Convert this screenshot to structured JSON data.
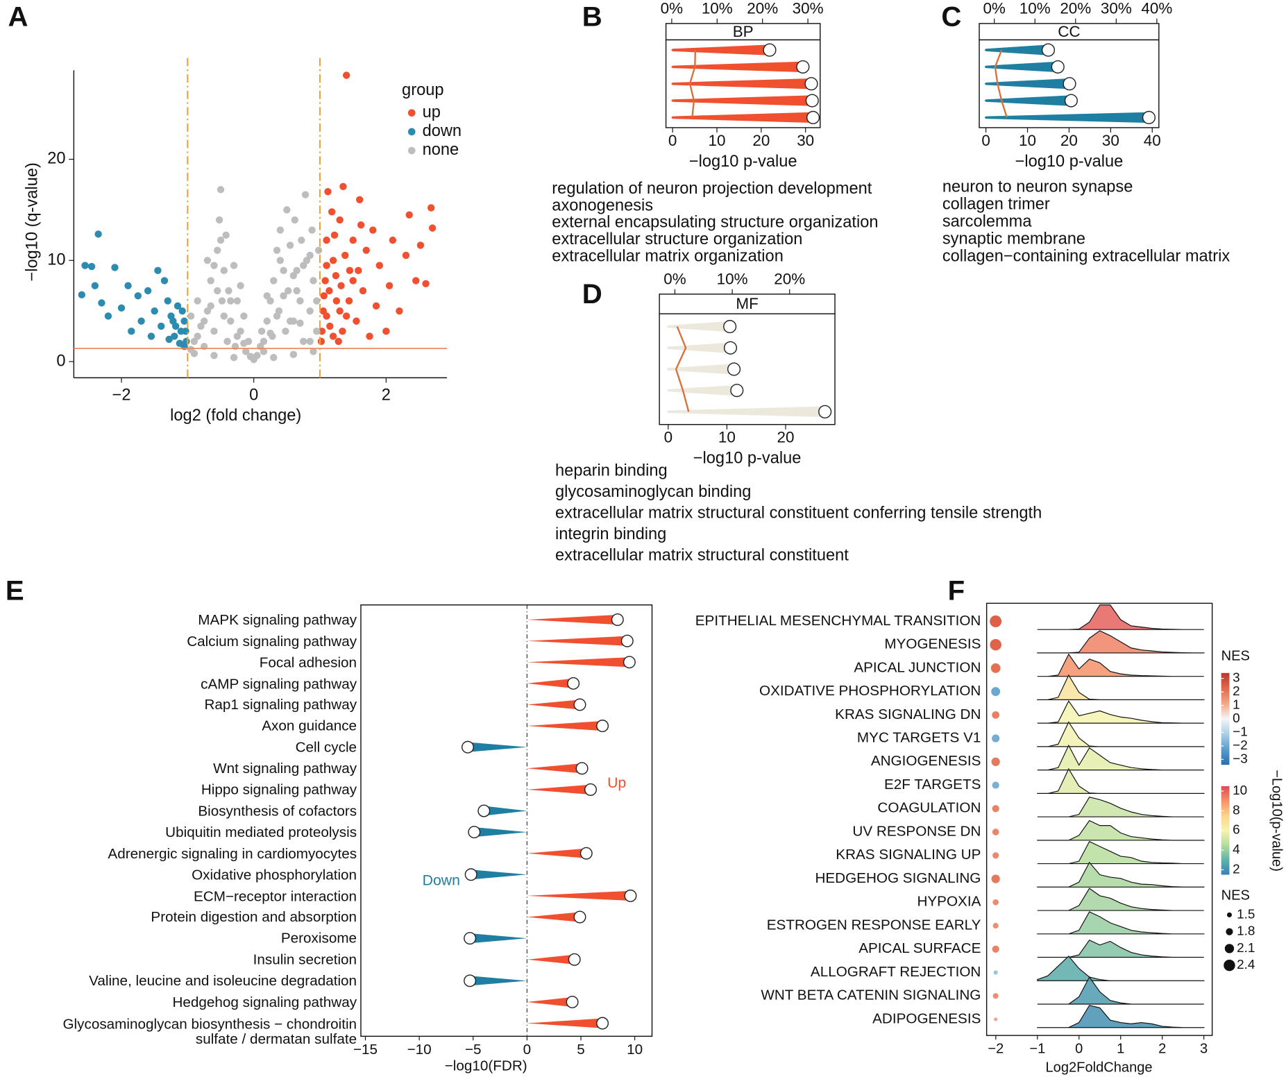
{
  "chart_data": [
    {
      "type": "volcano",
      "label": "A",
      "xlabel": "log2 (fold change)",
      "ylabel": "−log10 (q-value)",
      "legend_title": "group",
      "xlim": [
        -2.72,
        2.92
      ],
      "ylim": [
        -1.6,
        28.8
      ],
      "xticks": [
        {
          "value": -2,
          "label": "−2"
        },
        0,
        2
      ],
      "yticks": [
        0,
        10,
        20
      ],
      "vlines": [
        -1,
        1
      ],
      "hline": 1.3,
      "threshold_color": "#e8a33d",
      "hline_color": "#f08a5d",
      "series": [
        {
          "name": "up",
          "color": "#f0502f",
          "x": [
            1.02,
            1.05,
            1.08,
            1.1,
            1.12,
            1.15,
            1.2,
            1.25,
            1.3,
            1.35,
            1.4,
            1.45,
            1.5,
            1.55,
            1.6,
            1.65,
            1.7,
            1.75,
            1.8,
            1.85,
            1.9,
            2.0,
            2.05,
            2.1,
            2.2,
            2.3,
            2.35,
            2.45,
            2.52,
            2.6,
            2.68,
            2.7,
            1.18,
            1.28,
            1.4,
            1.62,
            1.03,
            1.06,
            1.1,
            1.14,
            1.2,
            1.24,
            1.3,
            1.34,
            1.38,
            1.44,
            1.5,
            1.58,
            1.1,
            1.22,
            1.32
          ],
          "values": [
            2,
            5,
            8,
            12,
            16.8,
            3.5,
            10,
            6,
            14,
            17.3,
            28.3,
            9,
            12,
            4,
            16,
            7,
            11,
            2.5,
            13,
            5.5,
            9.5,
            3,
            7.5,
            12,
            5,
            10.5,
            14.5,
            8,
            11.5,
            7.7,
            15.2,
            13.2,
            14.8,
            2,
            4.5,
            13.5,
            3,
            6.5,
            4.5,
            7,
            2.5,
            8.5,
            5,
            3,
            10.5,
            6,
            8,
            9,
            9.5,
            12.5,
            7.5
          ]
        },
        {
          "name": "down",
          "color": "#2b8cb0",
          "x": [
            -1.02,
            -1.05,
            -1.1,
            -1.15,
            -1.2,
            -1.25,
            -1.3,
            -1.35,
            -1.4,
            -1.45,
            -1.5,
            -1.55,
            -1.6,
            -1.7,
            -1.75,
            -1.85,
            -1.9,
            -2.0,
            -2.1,
            -2.2,
            -2.3,
            -2.35,
            -2.45,
            -2.55,
            -2.6,
            -2.4,
            -1.03,
            -1.08,
            -1.12,
            -1.18,
            -1.22,
            -1.28,
            -1.05
          ],
          "values": [
            2,
            4,
            3,
            5.5,
            2.5,
            4.5,
            6,
            8,
            3.5,
            9,
            5,
            2.5,
            7,
            4,
            6.5,
            3,
            7.5,
            5.3,
            9.3,
            4.5,
            5.8,
            12.6,
            9.4,
            9.5,
            6.6,
            7.5,
            3,
            5,
            1.8,
            3.5,
            4,
            2.2,
            1.5
          ]
        },
        {
          "name": "none",
          "color": "#bdbdbd",
          "x": [
            -0.95,
            -0.9,
            -0.85,
            -0.8,
            -0.75,
            -0.7,
            -0.65,
            -0.6,
            -0.55,
            -0.52,
            -0.5,
            -0.48,
            -0.45,
            -0.42,
            -0.4,
            -0.38,
            -0.35,
            -0.3,
            -0.28,
            -0.25,
            -0.2,
            -0.15,
            -0.12,
            -0.08,
            -0.05,
            0,
            0.05,
            0.1,
            0.12,
            0.15,
            0.2,
            0.25,
            0.28,
            0.3,
            0.35,
            0.38,
            0.4,
            0.45,
            0.48,
            0.5,
            0.52,
            0.55,
            0.6,
            0.62,
            0.65,
            0.7,
            0.72,
            0.75,
            0.78,
            0.8,
            0.85,
            0.88,
            0.9,
            0.95,
            0.98,
            -0.9,
            -0.6,
            -0.3,
            0.3,
            0.6,
            0.9,
            -0.7,
            -0.2,
            0.2,
            -0.85,
            -0.75,
            -0.65,
            -0.55,
            -0.45,
            -0.35,
            -0.25,
            -0.15,
            0.15,
            0.25,
            0.35,
            0.45,
            0.55,
            0.65,
            0.75,
            0.85,
            0.95,
            -0.6,
            -0.5,
            0.4,
            0.6,
            0.7,
            0.85,
            -0.95
          ],
          "values": [
            4.5,
            2,
            6,
            3.5,
            1.5,
            5,
            8,
            3,
            11,
            14,
            17,
            6,
            9,
            12.5,
            2,
            7,
            4,
            9.5,
            1.5,
            6,
            3,
            4.5,
            1,
            2,
            0.5,
            0.2,
            0.6,
            1.5,
            3,
            2,
            4,
            6,
            2.5,
            8,
            11,
            5,
            13,
            9,
            3,
            15,
            7,
            11.5,
            4,
            14,
            9,
            6,
            12,
            2,
            16.5,
            10,
            5,
            13,
            8,
            3,
            11,
            0.8,
            0.6,
            0.4,
            0.4,
            0.7,
            1,
            10,
            7.5,
            6.5,
            2.5,
            4,
            5.5,
            7,
            4.5,
            6,
            2.5,
            1.8,
            1,
            2.8,
            4.5,
            6.5,
            4,
            7,
            9.5,
            10.5,
            6,
            9.5,
            12,
            10,
            8.5,
            3.8,
            2,
            1.2
          ]
        }
      ]
    },
    {
      "type": "go_bar",
      "label": "B",
      "facet": "BP",
      "terms": [
        "regulation of neuron projection development",
        "axonogenesis",
        "external encapsulating structure organization",
        "extracellular structure organization",
        "extracellular matrix organization"
      ],
      "values": [
        21.9,
        29.4,
        31.3,
        31.5,
        31.7
      ],
      "percent": [
        5.2,
        5.1,
        4.0,
        4.9,
        4.5
      ],
      "xlim": [
        -1.5,
        33.3
      ],
      "xticks": [
        0,
        10,
        20,
        30
      ],
      "top_xlim": [
        -1.27,
        32.7
      ],
      "top_xticks": [
        {
          "value": 0,
          "label": "0%"
        },
        {
          "value": 10,
          "label": "10%"
        },
        {
          "value": 20,
          "label": "20%"
        },
        {
          "value": 30,
          "label": "30%"
        }
      ],
      "xlabel": "−log10 p-value",
      "color": "#f0502f",
      "line_color": "#d9703c"
    },
    {
      "type": "go_bar",
      "label": "C",
      "facet": "CC",
      "terms": [
        "neuron to neuron synapse",
        "collagen trimer",
        "sarcolemma",
        "synaptic membrane",
        "collagen−containing extracellular matrix"
      ],
      "values": [
        15.0,
        17.3,
        20.1,
        20.5,
        39.2
      ],
      "percent": [
        1.8,
        0.2,
        0.8,
        1.8,
        3.1
      ],
      "xlim": [
        -1.6,
        41.6
      ],
      "xticks": [
        0,
        10,
        20,
        30,
        40
      ],
      "top_xlim": [
        -3.7,
        40.5
      ],
      "top_xticks": [
        {
          "value": 0,
          "label": "0%"
        },
        {
          "value": 10,
          "label": "10%"
        },
        {
          "value": 20,
          "label": "20%"
        },
        {
          "value": 30,
          "label": "30%"
        },
        {
          "value": 40,
          "label": "40%"
        }
      ],
      "xlabel": "−log10 p-value",
      "color": "#1f7fa3",
      "line_color": "#d9703c"
    },
    {
      "type": "go_bar",
      "label": "D",
      "facet": "MF",
      "terms": [
        "heparin binding",
        "glycosaminoglycan binding",
        "extracellular matrix structural constituent conferring tensile strength",
        "integrin binding",
        "extracellular matrix structural constituent"
      ],
      "values": [
        10.5,
        10.6,
        11.2,
        11.7,
        26.7
      ],
      "percent": [
        0.4,
        1.9,
        0.2,
        1.4,
        2.4
      ],
      "xlim": [
        -1.5,
        28.4
      ],
      "xticks": [
        0,
        10,
        20
      ],
      "top_xlim": [
        -2.7,
        27.9
      ],
      "top_xticks": [
        {
          "value": 0,
          "label": "0%"
        },
        {
          "value": 10,
          "label": "10%"
        },
        {
          "value": 20,
          "label": "20%"
        }
      ],
      "xlabel": "−log10 p-value",
      "color": "#ece8dc",
      "line_color": "#d9703c"
    },
    {
      "type": "cone",
      "label": "E",
      "categories": [
        "MAPK signaling pathway",
        "Calcium signaling pathway",
        "Focal adhesion",
        "cAMP signaling pathway",
        "Rap1 signaling pathway",
        "Axon guidance",
        "Cell cycle",
        "Wnt signaling pathway",
        "Hippo signaling pathway",
        "Biosynthesis of cofactors",
        "Ubiquitin mediated proteolysis",
        "Adrenergic signaling in cardiomyocytes",
        "Oxidative phosphorylation",
        "ECM−receptor interaction",
        "Protein digestion and absorption",
        "Peroxisome",
        "Insulin secretion",
        "Valine, leucine and isoleucine degradation",
        "Hedgehog signaling pathway",
        "Glycosaminoglycan biosynthesis − chondroitin\nsulfate / dermatan sulfate"
      ],
      "values": [
        8.4,
        9.3,
        9.5,
        4.3,
        4.9,
        7.0,
        -5.5,
        5.1,
        5.9,
        -4.0,
        -4.9,
        5.5,
        -5.2,
        9.6,
        4.9,
        -5.3,
        4.4,
        -5.3,
        4.2,
        7.0
      ],
      "xlim": [
        -15.42,
        11.6
      ],
      "xticks": [
        {
          "value": -15,
          "label": "−15"
        },
        {
          "value": -10,
          "label": "−10"
        },
        {
          "value": -5,
          "label": "−5"
        },
        0,
        5,
        10
      ],
      "xlabel": "−log10(FDR)",
      "up_label": "Up",
      "down_label": "Down",
      "up_color": "#f0502f",
      "down_color": "#1f7fa3"
    },
    {
      "type": "ridgeline",
      "label": "F",
      "categories": [
        "EPITHELIAL MESENCHYMAL TRANSITION",
        "MYOGENESIS",
        "APICAL JUNCTION",
        "OXIDATIVE PHOSPHORYLATION",
        "KRAS SIGNALING DN",
        "MYC TARGETS V1",
        "ANGIOGENESIS",
        "E2F TARGETS",
        "COAGULATION",
        "UV RESPONSE DN",
        "KRAS SIGNALING UP",
        "HEDGEHOG SIGNALING",
        "HYPOXIA",
        "ESTROGEN RESPONSE EARLY",
        "APICAL SURFACE",
        "ALLOGRAFT REJECTION",
        "WNT BETA CATENIN SIGNALING",
        "ADIPOGENESIS"
      ],
      "nes": [
        2.45,
        2.4,
        2.15,
        -2.05,
        1.85,
        -1.9,
        2.0,
        -1.8,
        1.8,
        1.75,
        1.7,
        2.0,
        1.65,
        1.6,
        1.8,
        -1.4,
        1.6,
        1.3
      ],
      "log10p": [
        10,
        9.3,
        9,
        6.8,
        6,
        5.9,
        5.6,
        5.5,
        5,
        4.8,
        4.6,
        4.3,
        4.2,
        4,
        3.6,
        2.8,
        2.3,
        2.0
      ],
      "density_x": [
        -1,
        -0.75,
        -0.5,
        -0.25,
        0,
        0.25,
        0.5,
        0.75,
        1,
        1.25,
        1.5,
        1.75,
        2,
        2.25,
        2.5,
        2.75,
        3
      ],
      "density": [
        [
          0,
          0,
          0,
          0,
          0.02,
          0.3,
          1.0,
          1.0,
          0.4,
          0.15,
          0.1,
          0.05,
          0.02,
          0.01,
          0,
          0,
          0
        ],
        [
          0,
          0,
          0,
          0,
          0.03,
          0.6,
          0.9,
          0.7,
          0.45,
          0.2,
          0.12,
          0.08,
          0.04,
          0.02,
          0.01,
          0,
          0
        ],
        [
          0,
          0,
          0.05,
          0.9,
          0.3,
          0.7,
          0.55,
          0.2,
          0.1,
          0.05,
          0.03,
          0.02,
          0.01,
          0,
          0,
          0,
          0
        ],
        [
          0,
          0,
          0.1,
          1.0,
          0.3,
          0.02,
          0,
          0,
          0,
          0,
          0,
          0,
          0,
          0,
          0,
          0,
          0
        ],
        [
          0,
          0,
          0.05,
          0.9,
          0.3,
          0.4,
          0.5,
          0.35,
          0.25,
          0.2,
          0.12,
          0.06,
          0.02,
          0.01,
          0,
          0,
          0
        ],
        [
          0,
          0,
          0.1,
          1.0,
          0.35,
          0.02,
          0,
          0,
          0,
          0,
          0,
          0,
          0,
          0,
          0,
          0,
          0
        ],
        [
          0,
          0,
          0.1,
          1.0,
          0.2,
          0.9,
          0.6,
          0.3,
          0.2,
          0.1,
          0.05,
          0.02,
          0,
          0,
          0,
          0,
          0
        ],
        [
          0,
          0,
          0.1,
          1.0,
          0.3,
          0.02,
          0,
          0,
          0,
          0,
          0,
          0,
          0,
          0,
          0,
          0,
          0
        ],
        [
          0,
          0,
          0,
          0,
          0.1,
          0.8,
          0.7,
          0.55,
          0.35,
          0.2,
          0.1,
          0.05,
          0.02,
          0,
          0,
          0,
          0
        ],
        [
          0,
          0,
          0,
          0,
          0.2,
          0.8,
          0.6,
          0.6,
          0.3,
          0.15,
          0.1,
          0.05,
          0.02,
          0,
          0,
          0,
          0
        ],
        [
          0,
          0,
          0,
          0,
          0.1,
          0.9,
          0.7,
          0.5,
          0.3,
          0.25,
          0.1,
          0.05,
          0.03,
          0.02,
          0,
          0,
          0
        ],
        [
          0,
          0,
          0,
          0,
          0.2,
          1.0,
          0.5,
          0.4,
          0.35,
          0.2,
          0.12,
          0.1,
          0.05,
          0.02,
          0,
          0,
          0
        ],
        [
          0,
          0,
          0,
          0,
          0.2,
          0.9,
          0.6,
          0.5,
          0.3,
          0.15,
          0.08,
          0.04,
          0.02,
          0,
          0,
          0,
          0
        ],
        [
          0,
          0,
          0,
          0,
          0.15,
          0.9,
          0.7,
          0.45,
          0.3,
          0.15,
          0.08,
          0.05,
          0.02,
          0,
          0,
          0,
          0
        ],
        [
          0,
          0,
          0,
          0,
          0.1,
          0.7,
          0.5,
          0.65,
          0.4,
          0.2,
          0.1,
          0.05,
          0.02,
          0,
          0,
          0,
          0
        ],
        [
          0.05,
          0.2,
          0.6,
          1.0,
          0.5,
          0.15,
          0.05,
          0,
          0,
          0,
          0,
          0,
          0,
          0,
          0,
          0,
          0
        ],
        [
          0,
          0,
          0,
          0,
          0.3,
          1.1,
          0.5,
          0.15,
          0.05,
          0,
          0,
          0,
          0,
          0,
          0,
          0,
          0
        ],
        [
          0,
          0,
          0,
          0,
          0.2,
          0.9,
          0.8,
          0.3,
          0.2,
          0.15,
          0.2,
          0.15,
          0.05,
          0.02,
          0,
          0,
          0
        ]
      ],
      "xlim": [
        -2.22,
        3.2
      ],
      "xticks": [
        {
          "value": -2,
          "label": "−2"
        },
        {
          "value": -1,
          "label": "−1"
        },
        0,
        1,
        2,
        3
      ],
      "xlabel": "Log2FoldChange",
      "nes_scale": {
        "title": "NES",
        "lim": [
          -3.4,
          3.4
        ],
        "colors": [
          "#2a6eb0",
          "#5a9ccb",
          "#a9cfe4",
          "#f5f5f5",
          "#f3a88a",
          "#e2694e",
          "#c3322e"
        ],
        "ticks": [
          3,
          2,
          1,
          0,
          {
            "value": -1,
            "label": "−1"
          },
          {
            "value": -2,
            "label": "−2"
          },
          {
            "value": -3,
            "label": "−3"
          }
        ]
      },
      "p_scale": {
        "title": "−Log10(p-value)",
        "lim": [
          1.5,
          10.5
        ],
        "colors": [
          "#3a7fb8",
          "#5fb3a8",
          "#b5dc9e",
          "#f5f3b0",
          "#fcd58b",
          "#f4926a",
          "#dc4a56"
        ],
        "ticks": [
          10,
          8,
          6,
          4,
          2
        ]
      },
      "size_legend": {
        "title": "NES",
        "values": [
          1.5,
          1.8,
          2.1,
          2.4
        ]
      }
    }
  ]
}
